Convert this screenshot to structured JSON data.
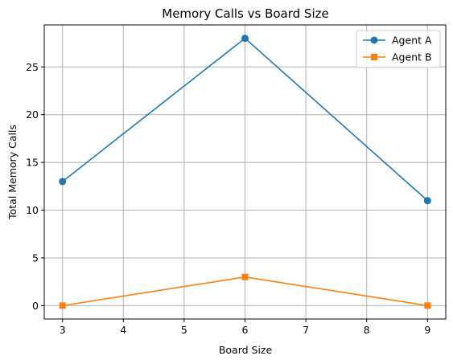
{
  "chart_data": {
    "type": "line",
    "title": "Memory Calls vs Board Size",
    "xlabel": "Board Size",
    "ylabel": "Total Memory Calls",
    "x": [
      3,
      6,
      9
    ],
    "xlim": [
      2.7,
      9.3
    ],
    "ylim": [
      -1.4,
      29.4
    ],
    "xticks": [
      3,
      4,
      5,
      6,
      7,
      8,
      9
    ],
    "yticks": [
      0,
      5,
      10,
      15,
      20,
      25
    ],
    "grid": true,
    "legend_position": "top-right",
    "series": [
      {
        "name": "Agent A",
        "values": [
          13,
          28,
          11
        ],
        "color": "#1f77b4",
        "marker": "circle"
      },
      {
        "name": "Agent B",
        "values": [
          0,
          3,
          0
        ],
        "color": "#ff7f0e",
        "marker": "square"
      }
    ]
  }
}
